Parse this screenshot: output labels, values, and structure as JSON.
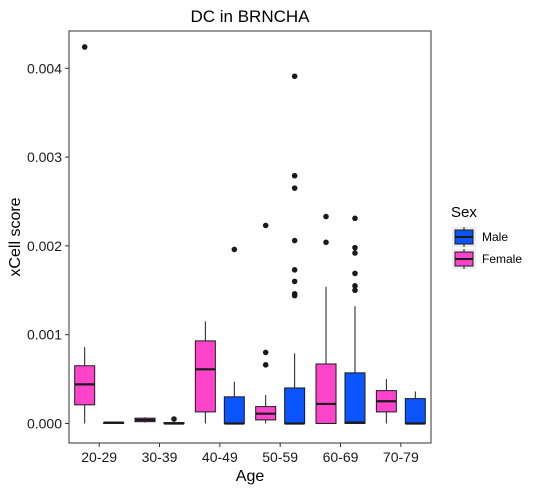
{
  "chart_data": {
    "type": "boxplot",
    "title": "DC in BRNCHA",
    "xlabel": "Age",
    "ylabel": "xCell score",
    "ylim": [
      -0.00022,
      0.00442
    ],
    "yticks": [
      0,
      0.001,
      0.002,
      0.003,
      0.004
    ],
    "ytick_labels": [
      "0.000",
      "0.001",
      "0.002",
      "0.003",
      "0.004"
    ],
    "categories": [
      "20-29",
      "30-39",
      "40-49",
      "50-59",
      "60-69",
      "70-79"
    ],
    "grid": false,
    "legend": {
      "title": "Sex",
      "position": "right"
    },
    "series": [
      {
        "name": "Female",
        "color": "#ff44cc",
        "boxes": [
          {
            "category": "20-29",
            "min": 0.0,
            "q1": 0.00021,
            "median": 0.00044,
            "q3": 0.00065,
            "max": 0.00086,
            "outliers": [
              0.00424
            ]
          },
          {
            "category": "30-39",
            "min": 1e-05,
            "q1": 2e-05,
            "median": 4e-05,
            "q3": 6e-05,
            "max": 7e-05,
            "outliers": []
          },
          {
            "category": "40-49",
            "min": 0.0,
            "q1": 0.00013,
            "median": 0.00061,
            "q3": 0.00093,
            "max": 0.00115,
            "outliers": []
          },
          {
            "category": "50-59",
            "min": 0.0,
            "q1": 4e-05,
            "median": 0.00011,
            "q3": 0.00019,
            "max": 0.00032,
            "outliers": [
              0.00066,
              0.0008,
              0.00223
            ]
          },
          {
            "category": "60-69",
            "min": 0.0,
            "q1": 0.0,
            "median": 0.00022,
            "q3": 0.00067,
            "max": 0.00154,
            "outliers": [
              0.00204,
              0.00233
            ]
          },
          {
            "category": "70-79",
            "min": 0.0,
            "q1": 0.00013,
            "median": 0.00025,
            "q3": 0.00037,
            "max": 0.0005,
            "outliers": []
          }
        ]
      },
      {
        "name": "Male",
        "color": "#0a55ff",
        "boxes": [
          {
            "category": "20-29",
            "min": 0.0,
            "q1": 0.0,
            "median": 1e-05,
            "q3": 1e-05,
            "max": 1e-05,
            "outliers": []
          },
          {
            "category": "30-39",
            "min": 0.0,
            "q1": 0.0,
            "median": 0.0,
            "q3": 1e-05,
            "max": 1e-05,
            "outliers": [
              5e-05
            ]
          },
          {
            "category": "40-49",
            "min": 0.0,
            "q1": 0.0,
            "median": 0.0,
            "q3": 0.0003,
            "max": 0.00047,
            "outliers": [
              0.00196
            ]
          },
          {
            "category": "50-59",
            "min": 0.0,
            "q1": 0.0,
            "median": 0.0,
            "q3": 0.0004,
            "max": 0.00079,
            "outliers": [
              0.00144,
              0.00146,
              0.0016,
              0.00173,
              0.00206,
              0.00265,
              0.00279,
              0.00391
            ]
          },
          {
            "category": "60-69",
            "min": 0.0,
            "q1": 0.0,
            "median": 1e-05,
            "q3": 0.00057,
            "max": 0.00132,
            "outliers": [
              0.0015,
              0.00155,
              0.00169,
              0.00192,
              0.00198,
              0.00231
            ]
          },
          {
            "category": "70-79",
            "min": 0.0,
            "q1": 0.0,
            "median": 0.0,
            "q3": 0.00028,
            "max": 0.00036,
            "outliers": []
          }
        ]
      }
    ]
  }
}
